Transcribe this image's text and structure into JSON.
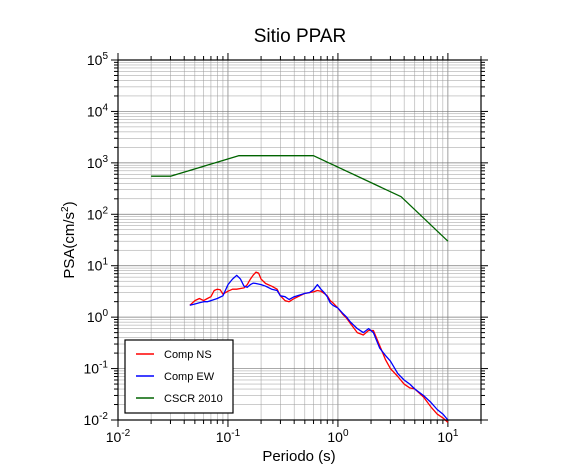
{
  "chart_data": {
    "type": "line",
    "title": "Sitio PPAR",
    "xlabel": "Periodo (s)",
    "ylabel_base": "PSA(cm/s",
    "ylabel_sup": "2",
    "ylabel_end": ")",
    "x_scale": "log",
    "y_scale": "log",
    "xlim": [
      0.01,
      20
    ],
    "ylim": [
      0.01,
      100000
    ],
    "grid": true,
    "legend_position": "bottom-left",
    "x_ticks": [
      {
        "value": 0.01,
        "base": "10",
        "exp": "-2"
      },
      {
        "value": 0.1,
        "base": "10",
        "exp": "-1"
      },
      {
        "value": 1,
        "base": "10",
        "exp": "0"
      },
      {
        "value": 10,
        "base": "10",
        "exp": "1"
      }
    ],
    "y_ticks": [
      {
        "value": 0.01,
        "base": "10",
        "exp": "-2"
      },
      {
        "value": 0.1,
        "base": "10",
        "exp": "-1"
      },
      {
        "value": 1,
        "base": "10",
        "exp": "0"
      },
      {
        "value": 10,
        "base": "10",
        "exp": "1"
      },
      {
        "value": 100,
        "base": "10",
        "exp": "2"
      },
      {
        "value": 1000,
        "base": "10",
        "exp": "3"
      },
      {
        "value": 10000,
        "base": "10",
        "exp": "4"
      },
      {
        "value": 100000,
        "base": "10",
        "exp": "5"
      }
    ],
    "series": [
      {
        "name": "Comp NS",
        "color": "#ff0000",
        "x": [
          0.045,
          0.05,
          0.055,
          0.06,
          0.065,
          0.07,
          0.075,
          0.08,
          0.085,
          0.09,
          0.1,
          0.11,
          0.12,
          0.13,
          0.14,
          0.15,
          0.16,
          0.17,
          0.18,
          0.19,
          0.2,
          0.22,
          0.25,
          0.28,
          0.3,
          0.33,
          0.36,
          0.4,
          0.45,
          0.5,
          0.55,
          0.6,
          0.65,
          0.7,
          0.75,
          0.8,
          0.85,
          0.9,
          1.0,
          1.1,
          1.2,
          1.3,
          1.5,
          1.7,
          1.9,
          2.1,
          2.4,
          2.7,
          3.0,
          3.5,
          4.0,
          4.5,
          5.0,
          6.0,
          7.0,
          8.0,
          9.0,
          10.0
        ],
        "y": [
          1.7,
          2.1,
          2.3,
          2.1,
          2.3,
          2.5,
          3.3,
          3.5,
          3.4,
          2.8,
          3.2,
          3.5,
          3.5,
          3.6,
          3.7,
          4.3,
          5.5,
          6.6,
          7.5,
          7.2,
          5.5,
          4.5,
          4.0,
          3.5,
          2.6,
          2.1,
          2.0,
          2.3,
          2.6,
          2.9,
          3.0,
          3.1,
          3.3,
          3.2,
          2.9,
          2.6,
          2.1,
          1.9,
          1.5,
          1.15,
          0.95,
          0.75,
          0.5,
          0.45,
          0.55,
          0.55,
          0.28,
          0.15,
          0.1,
          0.07,
          0.05,
          0.042,
          0.04,
          0.028,
          0.018,
          0.013,
          0.011,
          0.009
        ]
      },
      {
        "name": "Comp EW",
        "color": "#0000ff",
        "x": [
          0.045,
          0.05,
          0.055,
          0.06,
          0.065,
          0.07,
          0.08,
          0.09,
          0.1,
          0.11,
          0.12,
          0.13,
          0.14,
          0.15,
          0.16,
          0.17,
          0.18,
          0.2,
          0.22,
          0.25,
          0.28,
          0.3,
          0.33,
          0.36,
          0.4,
          0.45,
          0.5,
          0.55,
          0.6,
          0.65,
          0.7,
          0.75,
          0.8,
          0.85,
          0.9,
          1.0,
          1.1,
          1.2,
          1.3,
          1.5,
          1.7,
          1.9,
          2.1,
          2.4,
          2.7,
          3.0,
          3.5,
          4.0,
          4.5,
          5.0,
          6.0,
          7.0,
          8.0,
          9.0,
          10.0
        ],
        "y": [
          1.7,
          1.8,
          1.9,
          2.0,
          2.0,
          2.1,
          2.3,
          2.6,
          4.3,
          5.5,
          6.5,
          5.5,
          4.0,
          3.8,
          4.3,
          4.6,
          4.5,
          4.3,
          4.0,
          3.5,
          3.3,
          2.6,
          2.5,
          2.2,
          2.5,
          2.7,
          2.9,
          3.0,
          3.4,
          4.3,
          3.5,
          3.0,
          2.5,
          1.9,
          1.7,
          1.5,
          1.2,
          1.0,
          0.8,
          0.6,
          0.5,
          0.6,
          0.5,
          0.25,
          0.18,
          0.14,
          0.08,
          0.06,
          0.05,
          0.04,
          0.03,
          0.022,
          0.016,
          0.013,
          0.01
        ]
      },
      {
        "name": "CSCR 2010",
        "color": "#006400",
        "x": [
          0.02,
          0.03,
          0.125,
          0.6,
          3.75,
          10.0
        ],
        "y": [
          550,
          550,
          1375,
          1375,
          220,
          30
        ]
      }
    ]
  }
}
